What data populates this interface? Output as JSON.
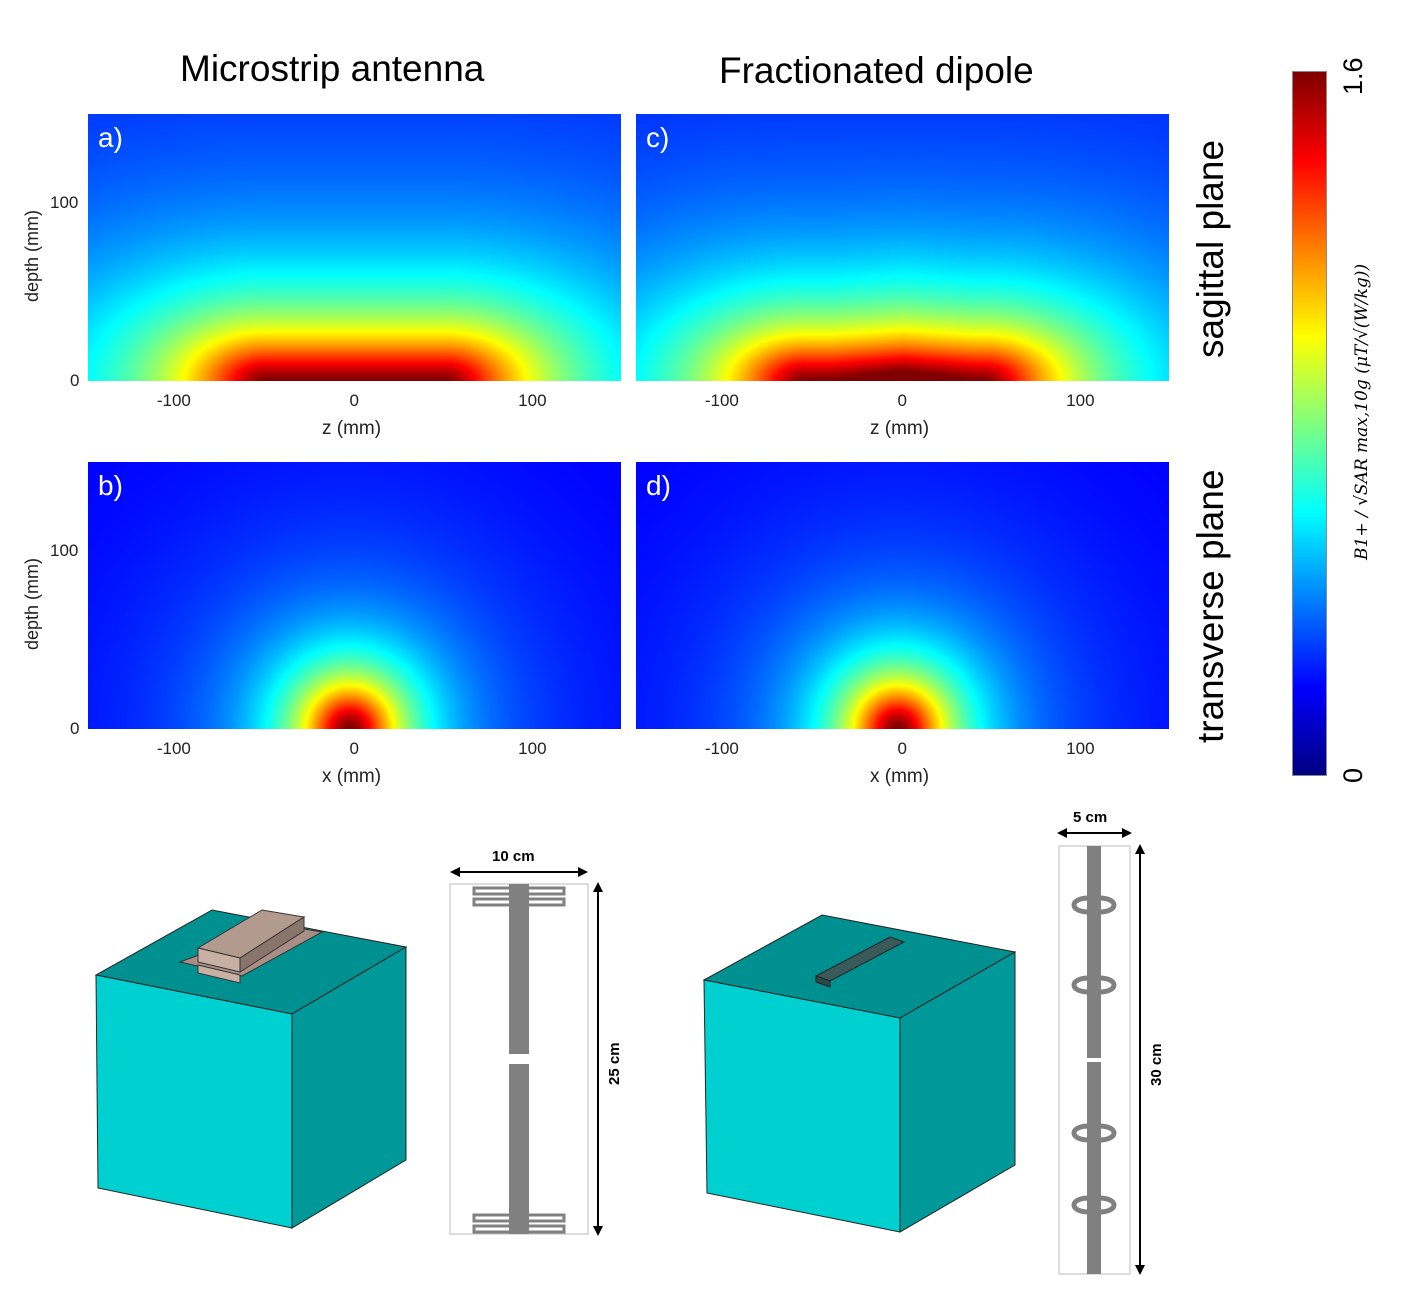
{
  "column_titles": [
    "Microstrip antenna",
    "Fractionated dipole"
  ],
  "row_titles": [
    "sagittal plane",
    "transverse plane"
  ],
  "chart_data": [
    {
      "type": "heatmap",
      "panel": "a)",
      "antenna": "Microstrip antenna",
      "plane": "sagittal",
      "xlabel": "z (mm)",
      "ylabel": "depth (mm)",
      "xlim": [
        -150,
        150
      ],
      "ylim": [
        0,
        150
      ],
      "xticks": [
        "-100",
        "0",
        "100"
      ],
      "yticks": [
        "0",
        "100"
      ]
    },
    {
      "type": "heatmap",
      "panel": "b)",
      "antenna": "Microstrip antenna",
      "plane": "transverse",
      "xlabel": "x (mm)",
      "ylabel": "depth (mm)",
      "xlim": [
        -150,
        150
      ],
      "ylim": [
        0,
        150
      ],
      "xticks": [
        "-100",
        "0",
        "100"
      ],
      "yticks": [
        "0",
        "100"
      ]
    },
    {
      "type": "heatmap",
      "panel": "c)",
      "antenna": "Fractionated dipole",
      "plane": "sagittal",
      "xlabel": "z (mm)",
      "ylabel": "",
      "xlim": [
        -150,
        150
      ],
      "ylim": [
        0,
        150
      ],
      "xticks": [
        "-100",
        "0",
        "100"
      ],
      "yticks": []
    },
    {
      "type": "heatmap",
      "panel": "d)",
      "antenna": "Fractionated dipole",
      "plane": "transverse",
      "xlabel": "x (mm)",
      "ylabel": "",
      "xlim": [
        -150,
        150
      ],
      "ylim": [
        0,
        150
      ],
      "xticks": [
        "-100",
        "0",
        "100"
      ],
      "yticks": []
    }
  ],
  "colorbar": {
    "min_label": "0",
    "max_label": "1.6",
    "range": [
      0,
      1.6
    ],
    "colormap": "jet",
    "label": "B1+ / √SAR max,10g (μT/√(W/kg))"
  },
  "diagrams": {
    "microstrip": {
      "width": "10 cm",
      "length": "25 cm"
    },
    "dipole": {
      "width": "5 cm",
      "length": "30 cm"
    }
  },
  "colors": {
    "phantom_front": "#00d0d0",
    "phantom_side": "#009898",
    "phantom_top": "#00908f",
    "antenna_gray": "#808080"
  }
}
